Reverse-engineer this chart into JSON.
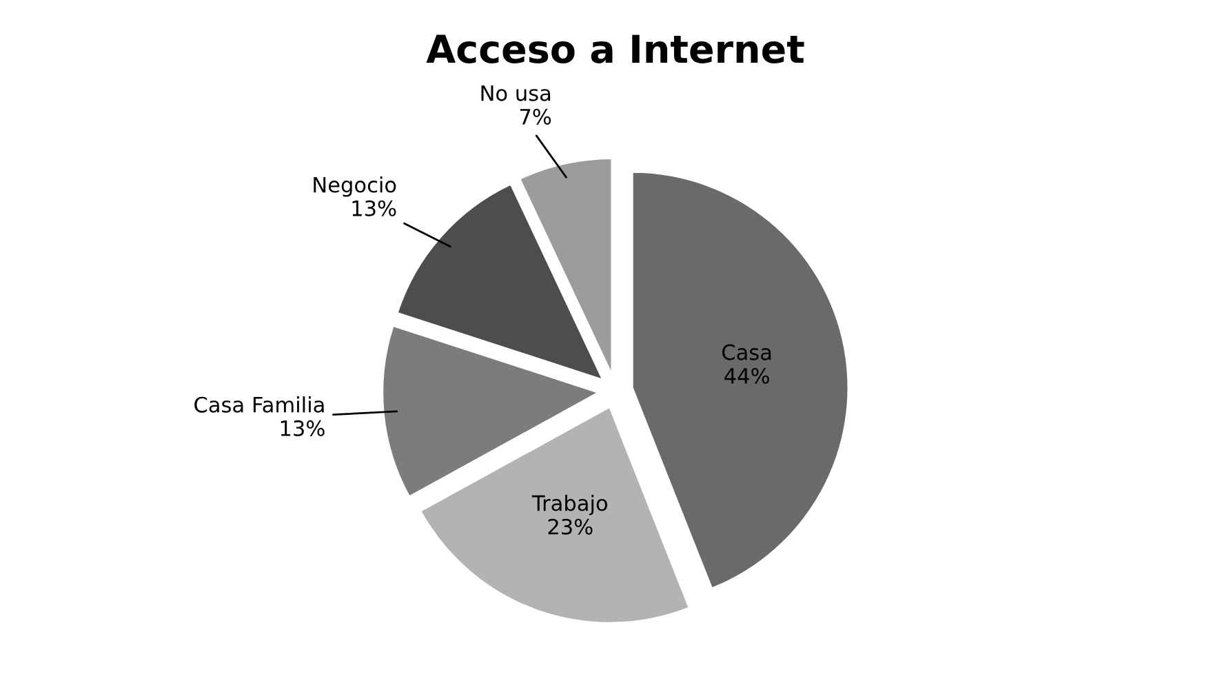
{
  "chart_data": {
    "type": "pie",
    "title": "Acceso a Internet",
    "categories": [
      "Casa",
      "Trabajo",
      "Casa Familia",
      "Negocio",
      "No usa"
    ],
    "values": [
      44,
      23,
      13,
      13,
      7
    ],
    "value_labels": [
      "44%",
      "23%",
      "13%",
      "13%",
      "7%"
    ],
    "colors": [
      "#6a6a6a",
      "#b3b3b3",
      "#7c7c7c",
      "#4d4d4d",
      "#9c9c9c"
    ],
    "legend": false
  }
}
